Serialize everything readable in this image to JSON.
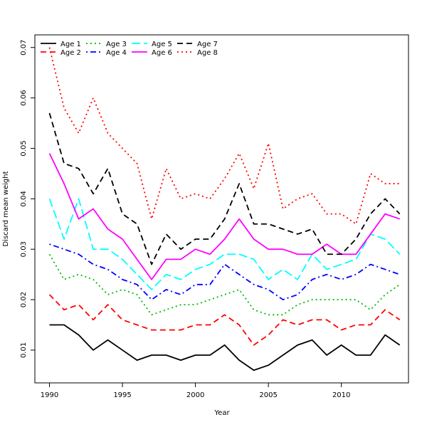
{
  "chart_data": {
    "type": "line",
    "title": "",
    "xlabel": "Year",
    "ylabel": "Discard mean weight",
    "xlim": [
      1989.0,
      2014.6
    ],
    "ylim": [
      0.0035,
      0.0725
    ],
    "xticks": [
      1990,
      1995,
      2000,
      2005,
      2010
    ],
    "yticks": [
      0.01,
      0.02,
      0.03,
      0.04,
      0.05,
      0.06,
      0.07
    ],
    "grid": false,
    "legend_placement": "top-left",
    "x": [
      1990,
      1991,
      1992,
      1993,
      1994,
      1995,
      1996,
      1997,
      1998,
      1999,
      2000,
      2001,
      2002,
      2003,
      2004,
      2005,
      2006,
      2007,
      2008,
      2009,
      2010,
      2011,
      2012,
      2013,
      2014
    ],
    "series": [
      {
        "name": "Age 1",
        "color": "#000000",
        "dash": "solid",
        "values": [
          0.015,
          0.015,
          0.013,
          0.01,
          0.012,
          0.01,
          0.008,
          0.009,
          0.009,
          0.008,
          0.009,
          0.009,
          0.011,
          0.008,
          0.006,
          0.007,
          0.009,
          0.011,
          0.012,
          0.009,
          0.011,
          0.009,
          0.009,
          0.013,
          0.011
        ]
      },
      {
        "name": "Age 2",
        "color": "#ff0000",
        "dash": "dashed",
        "values": [
          0.021,
          0.018,
          0.019,
          0.016,
          0.019,
          0.016,
          0.015,
          0.014,
          0.014,
          0.014,
          0.015,
          0.015,
          0.017,
          0.015,
          0.011,
          0.013,
          0.016,
          0.015,
          0.016,
          0.016,
          0.014,
          0.015,
          0.015,
          0.018,
          0.016
        ]
      },
      {
        "name": "Age 3",
        "color": "#00bb00",
        "dash": "dotted",
        "values": [
          0.029,
          0.024,
          0.025,
          0.024,
          0.021,
          0.022,
          0.021,
          0.017,
          0.018,
          0.019,
          0.019,
          0.02,
          0.021,
          0.022,
          0.018,
          0.017,
          0.017,
          0.019,
          0.02,
          0.02,
          0.02,
          0.02,
          0.018,
          0.021,
          0.023
        ]
      },
      {
        "name": "Age 4",
        "color": "#0000ff",
        "dash": "dotdash",
        "values": [
          0.031,
          0.03,
          0.029,
          0.027,
          0.026,
          0.024,
          0.023,
          0.02,
          0.022,
          0.021,
          0.023,
          0.023,
          0.027,
          0.025,
          0.023,
          0.022,
          0.02,
          0.021,
          0.024,
          0.025,
          0.024,
          0.025,
          0.027,
          0.026,
          0.025
        ]
      },
      {
        "name": "Age 5",
        "color": "#00ffff",
        "dash": "longdash",
        "values": [
          0.04,
          0.032,
          0.04,
          0.03,
          0.03,
          0.028,
          0.025,
          0.022,
          0.025,
          0.024,
          0.026,
          0.027,
          0.029,
          0.029,
          0.028,
          0.024,
          0.026,
          0.024,
          0.029,
          0.026,
          0.027,
          0.028,
          0.033,
          0.032,
          0.029
        ]
      },
      {
        "name": "Age 6",
        "color": "#ff00ff",
        "dash": "solid",
        "values": [
          0.049,
          0.043,
          0.036,
          0.038,
          0.034,
          0.032,
          0.028,
          0.024,
          0.028,
          0.028,
          0.03,
          0.029,
          0.032,
          0.036,
          0.032,
          0.03,
          0.03,
          0.029,
          0.029,
          0.031,
          0.029,
          0.029,
          0.033,
          0.037,
          0.036
        ]
      },
      {
        "name": "Age 7",
        "color": "#000000",
        "dash": "dashed",
        "values": [
          0.057,
          0.047,
          0.046,
          0.041,
          0.046,
          0.037,
          0.035,
          0.027,
          0.033,
          0.03,
          0.032,
          0.032,
          0.036,
          0.043,
          0.035,
          0.035,
          0.034,
          0.033,
          0.034,
          0.029,
          0.029,
          0.032,
          0.037,
          0.04,
          0.037
        ]
      },
      {
        "name": "Age 8",
        "color": "#ff0000",
        "dash": "dotted",
        "values": [
          0.07,
          0.058,
          0.053,
          0.06,
          0.053,
          0.05,
          0.047,
          0.036,
          0.046,
          0.04,
          0.041,
          0.04,
          0.044,
          0.049,
          0.042,
          0.051,
          0.038,
          0.04,
          0.041,
          0.037,
          0.037,
          0.035,
          0.045,
          0.043,
          0.043
        ]
      }
    ]
  }
}
